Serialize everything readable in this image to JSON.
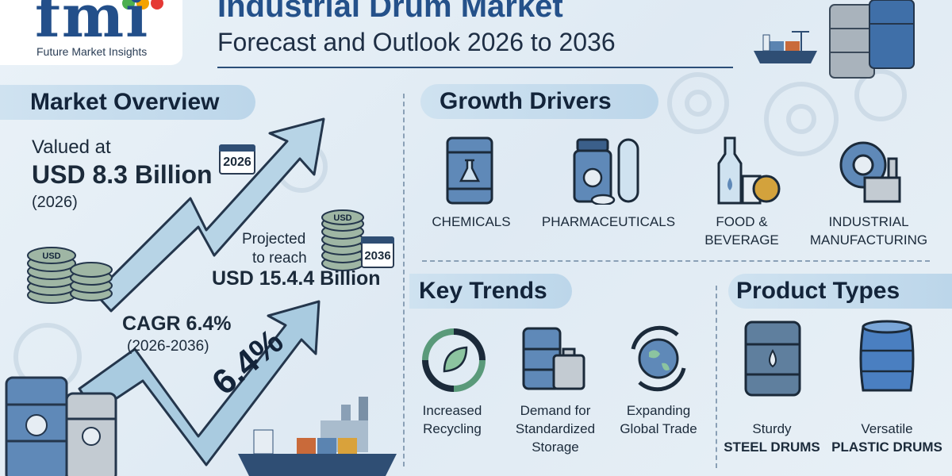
{
  "logo": {
    "mark": "fmi",
    "subtitle": "Future Market Insights"
  },
  "title": {
    "main": "Industrial Drum Market",
    "sub": "Forecast and Outlook 2026 to 2036"
  },
  "overview": {
    "heading": "Market Overview",
    "valued_label": "Valued at",
    "valued_amount": "USD 8.3 Billion",
    "valued_year": "(2026)",
    "calendar_start": "2026",
    "projected_line1": "Projected",
    "projected_line2": "to reach",
    "projected_amount": "USD 15.4.4 Billion",
    "calendar_end": "2036",
    "cagr_label": "CAGR 6.4%",
    "cagr_years": "(2026-2036)",
    "arrow_value": "6.4%",
    "coin_label": "USD"
  },
  "drivers": {
    "heading": "Growth Drivers",
    "items": [
      {
        "label": "CHEMICALS",
        "icon": "chemical-drum-icon"
      },
      {
        "label": "PHARMACEUTICALS",
        "icon": "pill-bottle-icon"
      },
      {
        "label_line1": "FOOD &",
        "label_line2": "BEVERAGE",
        "icon": "bottle-apple-icon"
      },
      {
        "label_line1": "INDUSTRIAL",
        "label_line2": "MANUFACTURING",
        "icon": "gear-factory-icon"
      }
    ]
  },
  "trends": {
    "heading": "Key Trends",
    "items": [
      {
        "line1": "Increased",
        "line2": "Recycling",
        "icon": "recycle-leaf-icon"
      },
      {
        "line1": "Demand for",
        "line2": "Standardized",
        "line3": "Storage",
        "icon": "drum-storage-icon"
      },
      {
        "line1": "Expanding",
        "line2": "Global Trade",
        "icon": "globe-arrows-icon"
      }
    ]
  },
  "types": {
    "heading": "Product Types",
    "items": [
      {
        "line1": "Sturdy",
        "line2": "STEEL DRUMS",
        "icon": "steel-drum-icon"
      },
      {
        "line1": "Versatile",
        "line2": "PLASTIC DRUMS",
        "icon": "plastic-drum-icon"
      }
    ]
  },
  "colors": {
    "brand": "#24518a",
    "arrow_fill": "#a9cbe0",
    "dark": "#1b2a3a",
    "pill": "#c4dbec"
  }
}
